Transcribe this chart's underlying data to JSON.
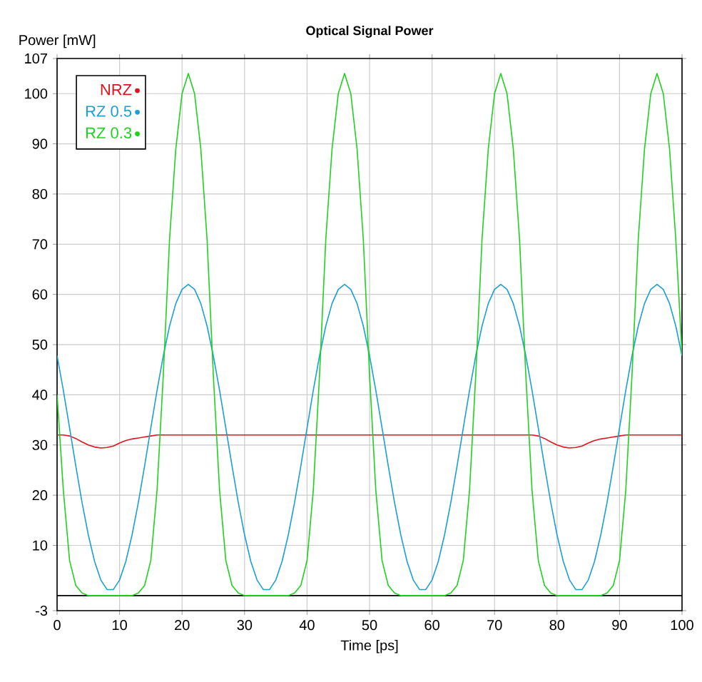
{
  "chart_data": {
    "type": "line",
    "title": "Optical Signal Power",
    "xlabel": "Time [ps]",
    "ylabel": "Power [mW]",
    "x": [
      0,
      1,
      2,
      3,
      4,
      5,
      6,
      7,
      8,
      9,
      10,
      11,
      12,
      13,
      14,
      15,
      16,
      17,
      18,
      19,
      20,
      21,
      22,
      23,
      24,
      25,
      26,
      27,
      28,
      29,
      30,
      31,
      32,
      33,
      34,
      35,
      36,
      37,
      38,
      39,
      40,
      41,
      42,
      43,
      44,
      45,
      46,
      47,
      48,
      49,
      50,
      51,
      52,
      53,
      54,
      55,
      56,
      57,
      58,
      59,
      60,
      61,
      62,
      63,
      64,
      65,
      66,
      67,
      68,
      69,
      70,
      71,
      72,
      73,
      74,
      75,
      76,
      77,
      78,
      79,
      80,
      81,
      82,
      83,
      84,
      85,
      86,
      87,
      88,
      89,
      90,
      91,
      92,
      93,
      94,
      95,
      96,
      97,
      98,
      99,
      100
    ],
    "series": [
      {
        "name": "NRZ",
        "color": "#e0141e",
        "values": [
          32,
          32,
          31.8,
          31.3,
          30.6,
          30,
          29.6,
          29.4,
          29.5,
          29.8,
          30.4,
          30.9,
          31.2,
          31.4,
          31.6,
          31.8,
          32,
          32,
          32,
          32,
          32,
          32,
          32,
          32,
          32,
          32,
          32,
          32,
          32,
          32,
          32,
          32,
          32,
          32,
          32,
          32,
          32,
          32,
          32,
          32,
          32,
          32,
          32,
          32,
          32,
          32,
          32,
          32,
          32,
          32,
          32,
          32,
          32,
          32,
          32,
          32,
          32,
          32,
          32,
          32,
          32,
          32,
          32,
          32,
          32,
          32,
          32,
          32,
          32,
          32,
          32,
          32,
          32,
          32,
          32,
          32,
          32,
          31.8,
          31.3,
          30.6,
          30,
          29.6,
          29.4,
          29.5,
          29.8,
          30.4,
          30.9,
          31.2,
          31.4,
          31.6,
          31.8,
          32,
          32,
          32,
          32,
          32,
          32,
          32,
          32,
          32,
          32
        ]
      },
      {
        "name": "RZ 0.5",
        "color": "#1a9fd6",
        "values": [
          47.8,
          40.9,
          33.4,
          25.8,
          18.5,
          12.1,
          6.8,
          3.1,
          1.2,
          1.2,
          3.1,
          6.8,
          12.1,
          18.5,
          25.8,
          33.4,
          40.9,
          47.8,
          53.7,
          58.2,
          61.0,
          62,
          61.0,
          58.2,
          53.7,
          47.8,
          40.9,
          33.4,
          25.8,
          18.5,
          12.1,
          6.8,
          3.1,
          1.2,
          1.2,
          3.1,
          6.8,
          12.1,
          18.5,
          25.8,
          33.4,
          40.9,
          47.8,
          53.7,
          58.2,
          61.0,
          62,
          61.0,
          58.2,
          53.7,
          47.8,
          40.9,
          33.4,
          25.8,
          18.5,
          12.1,
          6.8,
          3.1,
          1.2,
          1.2,
          3.1,
          6.8,
          12.1,
          18.5,
          25.8,
          33.4,
          40.9,
          47.8,
          53.7,
          58.2,
          61.0,
          62,
          61.0,
          58.2,
          53.7,
          47.8,
          40.9,
          33.4,
          25.8,
          18.5,
          12.1,
          6.8,
          3.1,
          1.2,
          1.2,
          3.1,
          6.8,
          12.1,
          18.5,
          25.8,
          33.4,
          40.9,
          47.8,
          53.7,
          58.2,
          61.0,
          62,
          61.0,
          58.2,
          53.7,
          47.8
        ]
      },
      {
        "name": "RZ 0.3",
        "color": "#1ed21e",
        "values": [
          40,
          21,
          7,
          2,
          0.5,
          0,
          0,
          0,
          0,
          0,
          0,
          0,
          0,
          0.5,
          2,
          7,
          21,
          44,
          71,
          89,
          100,
          104,
          100,
          89,
          71,
          44,
          21,
          7,
          2,
          0.5,
          0,
          0,
          0,
          0,
          0,
          0,
          0,
          0,
          0.5,
          2,
          7,
          21,
          44,
          71,
          89,
          100,
          104,
          100,
          89,
          71,
          44,
          21,
          7,
          2,
          0.5,
          0,
          0,
          0,
          0,
          0,
          0,
          0,
          0,
          0.5,
          2,
          7,
          21,
          44,
          71,
          89,
          100,
          104,
          100,
          89,
          71,
          44,
          21,
          7,
          2,
          0.5,
          0,
          0,
          0,
          0,
          0,
          0,
          0,
          0,
          0.5,
          2,
          7,
          21,
          44,
          71,
          89,
          100,
          104,
          100,
          89,
          71,
          48
        ]
      }
    ],
    "xlim": [
      0,
      100
    ],
    "ylim": [
      -3,
      107
    ],
    "xticks": [
      0,
      10,
      20,
      30,
      40,
      50,
      60,
      70,
      80,
      90,
      100
    ],
    "yticks": [
      -3,
      10,
      20,
      30,
      40,
      50,
      60,
      70,
      80,
      90,
      100,
      107
    ],
    "ref_lines": [
      {
        "axis": "y",
        "value": 0,
        "color": "#000000"
      }
    ],
    "grid": true,
    "legend": "top left"
  }
}
